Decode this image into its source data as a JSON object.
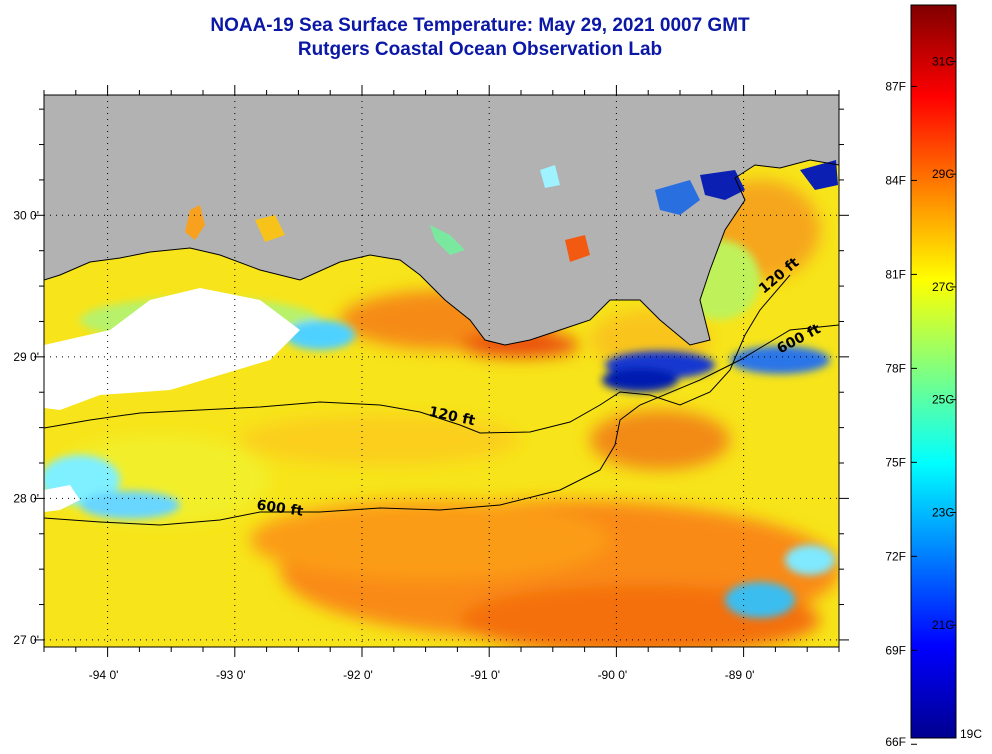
{
  "title": {
    "line1": "NOAA-19 Sea Surface Temperature:  May 29, 2021 0007 GMT",
    "line2": "Rutgers Coastal Ocean Observation Lab"
  },
  "map": {
    "lon_range": [
      -94.5,
      -88.25
    ],
    "lat_range": [
      26.95,
      30.85
    ],
    "land_color": "#b2b2b2",
    "cloud_color": "#ffffff",
    "lon_ticks": [
      {
        "value": -94,
        "label": "-94 0'"
      },
      {
        "value": -93,
        "label": "-93 0'"
      },
      {
        "value": -92,
        "label": "-92 0'"
      },
      {
        "value": -91,
        "label": "-91 0'"
      },
      {
        "value": -90,
        "label": "-90 0'"
      },
      {
        "value": -89,
        "label": "-89 0'"
      }
    ],
    "lat_ticks": [
      {
        "value": 30,
        "label": "30 0'"
      },
      {
        "value": 29,
        "label": "29 0'"
      },
      {
        "value": 28,
        "label": "28 0'"
      },
      {
        "value": 27,
        "label": "27 0'"
      }
    ],
    "contour_labels": [
      {
        "text": "120 ft",
        "lon": -91.3,
        "lat": 28.55,
        "rotate": 12
      },
      {
        "text": "600 ft",
        "lon": -92.65,
        "lat": 27.9,
        "rotate": 8
      },
      {
        "text": "120 ft",
        "lon": -88.7,
        "lat": 29.55,
        "rotate": -40
      },
      {
        "text": "600 ft",
        "lon": -88.55,
        "lat": 29.1,
        "rotate": -28
      }
    ]
  },
  "colorbar": {
    "temp_min_c": 19,
    "temp_max_c": 32,
    "celsius_labels": [
      {
        "value": 31,
        "label": "31C"
      },
      {
        "value": 29,
        "label": "29C"
      },
      {
        "value": 27,
        "label": "27C"
      },
      {
        "value": 25,
        "label": "25C"
      },
      {
        "value": 23,
        "label": "23C"
      },
      {
        "value": 21,
        "label": "21C"
      },
      {
        "value": 19,
        "label": "19C"
      }
    ],
    "fahrenheit_labels": [
      {
        "value": 87,
        "label": "87F"
      },
      {
        "value": 84,
        "label": "84F"
      },
      {
        "value": 81,
        "label": "81F"
      },
      {
        "value": 78,
        "label": "78F"
      },
      {
        "value": 75,
        "label": "75F"
      },
      {
        "value": 72,
        "label": "72F"
      },
      {
        "value": 69,
        "label": "69F"
      },
      {
        "value": 66,
        "label": "66F"
      }
    ],
    "gradient_stops": [
      "#00008f",
      "#0000ff",
      "#0080ff",
      "#00ffff",
      "#80ff80",
      "#ffff00",
      "#ff8000",
      "#ff0000",
      "#800000"
    ]
  }
}
